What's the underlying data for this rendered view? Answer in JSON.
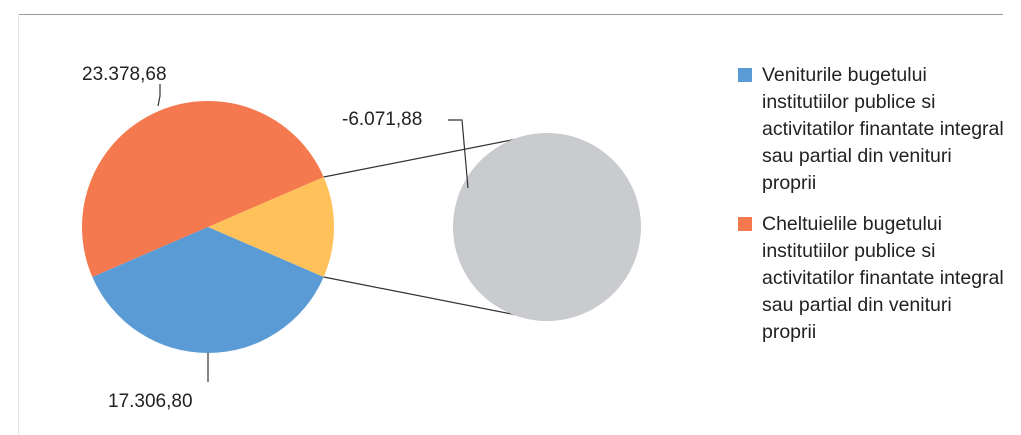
{
  "chart_data": {
    "type": "pie",
    "variant": "pie-of-pie",
    "slices": [
      {
        "label": "17.306,80",
        "value": 17306.8,
        "color": "#5b9bd5",
        "legend": 0
      },
      {
        "label": "23.378,68",
        "value": 23378.68,
        "color": "#f4794f",
        "legend": 1
      },
      {
        "label": "",
        "value": 6071.88,
        "color": "#ffc25a",
        "legend": null
      }
    ],
    "secondary": {
      "label": "-6.071,88",
      "value": -6071.88,
      "color": "#c9cbcf"
    },
    "legend_placement": "right"
  },
  "legend": {
    "items": [
      {
        "text": "Veniturile bugetului institutiilor publice si activitatilor finantate integral sau partial din venituri proprii",
        "color": "#5b9bd5"
      },
      {
        "text": "Cheltuielile bugetului institutiilor publice si activitatilor finantate integral sau partial din venituri proprii",
        "color": "#f4794f"
      }
    ]
  }
}
